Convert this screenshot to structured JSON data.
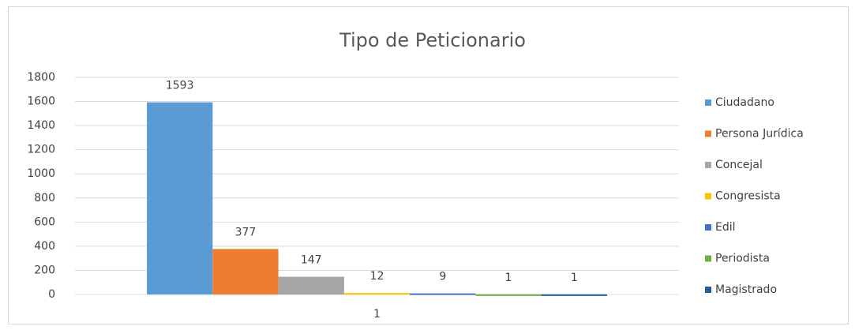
{
  "chart_data": {
    "type": "bar",
    "title": "Tipo de Peticionario",
    "categories": [
      "1"
    ],
    "series": [
      {
        "name": "Ciudadano",
        "color": "#5b9bd5",
        "values": [
          1593
        ]
      },
      {
        "name": "Persona Jurídica",
        "color": "#ed7d31",
        "values": [
          377
        ]
      },
      {
        "name": "Concejal",
        "color": "#a5a5a5",
        "values": [
          147
        ]
      },
      {
        "name": "Congresista",
        "color": "#ffc000",
        "values": [
          12
        ]
      },
      {
        "name": "Edil",
        "color": "#4472c4",
        "values": [
          9
        ]
      },
      {
        "name": "Periodista",
        "color": "#70ad47",
        "values": [
          1
        ]
      },
      {
        "name": "Magistrado",
        "color": "#255e91",
        "values": [
          1
        ]
      }
    ],
    "ylim": [
      0,
      1800
    ],
    "yticks": [
      0,
      200,
      400,
      600,
      800,
      1000,
      1200,
      1400,
      1600,
      1800
    ],
    "grid": true,
    "legend": "right"
  }
}
